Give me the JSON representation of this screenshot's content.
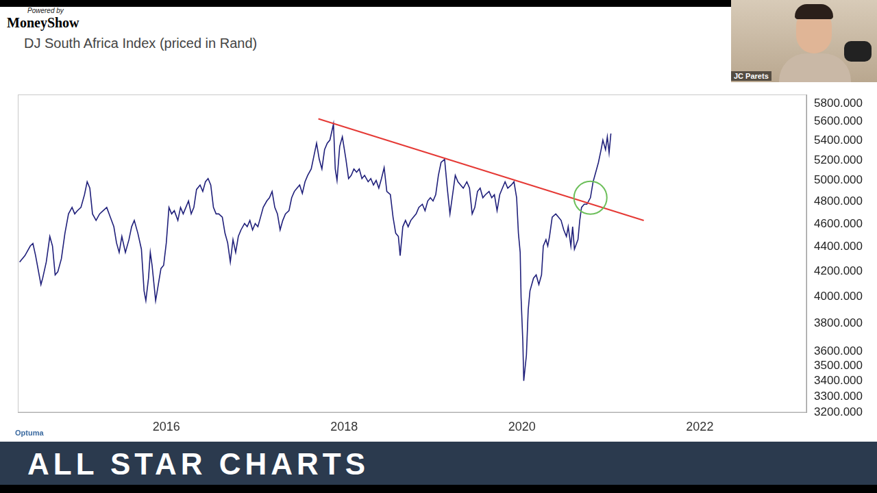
{
  "page": {
    "powered_by": "Powered by",
    "brand": "MoneyShow",
    "presenter": "JC Parets",
    "banner": "ALL STAR CHARTS",
    "watermark": "Optuma"
  },
  "chart_data": {
    "type": "line",
    "title": "DJ South Africa Index (priced in Rand)",
    "color": "#1f1f7a",
    "log": "y",
    "grid": false,
    "xlim": [
      2014.33,
      2023.2
    ],
    "xticks": [
      2016,
      2018,
      2020,
      2022
    ],
    "ylim": [
      3200,
      5900
    ],
    "yticks": [
      {
        "value": 3200,
        "label": "3200.000"
      },
      {
        "value": 3300,
        "label": "3300.000"
      },
      {
        "value": 3400,
        "label": "3400.000"
      },
      {
        "value": 3500,
        "label": "3500.000"
      },
      {
        "value": 3600,
        "label": "3600.000"
      },
      {
        "value": 3800,
        "label": "3800.000"
      },
      {
        "value": 4000,
        "label": "4000.000"
      },
      {
        "value": 4200,
        "label": "4200.000"
      },
      {
        "value": 4400,
        "label": "4400.000"
      },
      {
        "value": 4600,
        "label": "4600.000"
      },
      {
        "value": 4800,
        "label": "4800.000"
      },
      {
        "value": 5000,
        "label": "5000.000"
      },
      {
        "value": 5200,
        "label": "5200.000"
      },
      {
        "value": 5400,
        "label": "5400.000"
      },
      {
        "value": 5600,
        "label": "5600.000"
      },
      {
        "value": 5800,
        "label": "5800.000"
      }
    ],
    "x": [
      2014.35,
      2014.41,
      2014.47,
      2014.5,
      2014.53,
      2014.59,
      2014.61,
      2014.65,
      2014.69,
      2014.72,
      2014.75,
      2014.78,
      2014.82,
      2014.86,
      2014.9,
      2014.94,
      2014.97,
      2015.0,
      2015.04,
      2015.08,
      2015.11,
      2015.14,
      2015.17,
      2015.21,
      2015.25,
      2015.29,
      2015.33,
      2015.37,
      2015.41,
      2015.44,
      2015.47,
      2015.5,
      2015.54,
      2015.58,
      2015.61,
      2015.64,
      2015.68,
      2015.72,
      2015.75,
      2015.77,
      2015.8,
      2015.82,
      2015.84,
      2015.88,
      2015.91,
      2015.94,
      2015.97,
      2016.0,
      2016.03,
      2016.06,
      2016.09,
      2016.13,
      2016.16,
      2016.19,
      2016.22,
      2016.25,
      2016.28,
      2016.31,
      2016.34,
      2016.38,
      2016.41,
      2016.44,
      2016.47,
      2016.5,
      2016.53,
      2016.56,
      2016.59,
      2016.63,
      2016.66,
      2016.69,
      2016.72,
      2016.75,
      2016.78,
      2016.81,
      2016.84,
      2016.88,
      2016.91,
      2016.94,
      2016.97,
      2017.0,
      2017.03,
      2017.06,
      2017.09,
      2017.13,
      2017.16,
      2017.19,
      2017.22,
      2017.25,
      2017.28,
      2017.31,
      2017.34,
      2017.38,
      2017.41,
      2017.44,
      2017.47,
      2017.5,
      2017.53,
      2017.56,
      2017.59,
      2017.63,
      2017.66,
      2017.69,
      2017.72,
      2017.75,
      2017.78,
      2017.81,
      2017.84,
      2017.88,
      2017.9,
      2017.92,
      2017.95,
      2017.98,
      2018.02,
      2018.05,
      2018.08,
      2018.11,
      2018.14,
      2018.17,
      2018.2,
      2018.23,
      2018.27,
      2018.3,
      2018.33,
      2018.36,
      2018.39,
      2018.42,
      2018.45,
      2018.48,
      2018.52,
      2018.55,
      2018.58,
      2018.61,
      2018.63,
      2018.66,
      2018.69,
      2018.72,
      2018.75,
      2018.78,
      2018.81,
      2018.84,
      2018.88,
      2018.91,
      2018.94,
      2018.97,
      2019.0,
      2019.03,
      2019.06,
      2019.09,
      2019.13,
      2019.16,
      2019.19,
      2019.22,
      2019.25,
      2019.28,
      2019.31,
      2019.34,
      2019.38,
      2019.41,
      2019.44,
      2019.47,
      2019.5,
      2019.53,
      2019.56,
      2019.59,
      2019.63,
      2019.66,
      2019.69,
      2019.72,
      2019.75,
      2019.78,
      2019.81,
      2019.84,
      2019.88,
      2019.91,
      2019.94,
      2019.96,
      2019.98,
      2019.99,
      2020.01,
      2020.02,
      2020.05,
      2020.07,
      2020.09,
      2020.13,
      2020.16,
      2020.19,
      2020.22,
      2020.24,
      2020.27,
      2020.29,
      2020.31,
      2020.34,
      2020.38,
      2020.41,
      2020.44,
      2020.47,
      2020.5,
      2020.52,
      2020.55,
      2020.57,
      2020.59,
      2020.63,
      2020.65,
      2020.67,
      2020.7,
      2020.73,
      2020.77,
      2020.8,
      2020.83,
      2020.86,
      2020.89,
      2020.91,
      2020.94,
      2020.96,
      2020.98,
      2021.0
    ],
    "values": [
      4274,
      4327,
      4408,
      4430,
      4327,
      4093,
      4144,
      4274,
      4490,
      4408,
      4170,
      4195,
      4301,
      4518,
      4689,
      4748,
      4689,
      4718,
      4748,
      4866,
      4988,
      4927,
      4689,
      4631,
      4689,
      4718,
      4748,
      4660,
      4575,
      4435,
      4354,
      4490,
      4354,
      4463,
      4575,
      4631,
      4518,
      4381,
      4043,
      3968,
      4144,
      4354,
      4247,
      3968,
      4093,
      4221,
      4247,
      4435,
      4748,
      4689,
      4718,
      4631,
      4748,
      4689,
      4748,
      4807,
      4689,
      4748,
      4915,
      4957,
      4896,
      4988,
      5019,
      4957,
      4748,
      4689,
      4689,
      4660,
      4518,
      4435,
      4274,
      4463,
      4354,
      4490,
      4547,
      4603,
      4575,
      4631,
      4547,
      4603,
      4575,
      4660,
      4748,
      4807,
      4837,
      4896,
      4748,
      4689,
      4547,
      4631,
      4689,
      4718,
      4837,
      4896,
      4927,
      4957,
      4878,
      4988,
      5050,
      5113,
      5241,
      5372,
      5209,
      5113,
      5306,
      5372,
      5405,
      5575,
      5113,
      5001,
      5339,
      5439,
      5209,
      5019,
      5050,
      5113,
      5081,
      5113,
      5019,
      5050,
      4988,
      5019,
      4957,
      5001,
      4927,
      5019,
      5126,
      4896,
      4866,
      4660,
      4518,
      4490,
      4327,
      4575,
      4631,
      4575,
      4631,
      4660,
      4689,
      4748,
      4777,
      4718,
      4807,
      4837,
      4807,
      4866,
      5050,
      5177,
      5209,
      4927,
      4689,
      4866,
      5050,
      4988,
      4957,
      4927,
      4988,
      4927,
      4689,
      4748,
      4896,
      4927,
      4837,
      4866,
      4896,
      4837,
      4866,
      4718,
      4866,
      4927,
      4988,
      4927,
      4957,
      4988,
      4837,
      4518,
      4354,
      3993,
      3662,
      3401,
      3573,
      3896,
      4043,
      4144,
      4170,
      4093,
      4170,
      4408,
      4463,
      4408,
      4490,
      4660,
      4689,
      4660,
      4631,
      4547,
      4490,
      4575,
      4408,
      4575,
      4381,
      4463,
      4631,
      4748,
      4777,
      4777,
      4837,
      4988,
      5081,
      5177,
      5306,
      5405,
      5306,
      5439,
      5273,
      5473
    ],
    "annotations": [
      {
        "type": "line",
        "color": "#e53935",
        "x": [
          2017.71,
          2021.37
        ],
        "y": [
          5630,
          4630
        ]
      },
      {
        "type": "circle",
        "color": "#6cbf5a",
        "x": [
          2020.77
        ],
        "y": [
          4837
        ]
      }
    ]
  }
}
